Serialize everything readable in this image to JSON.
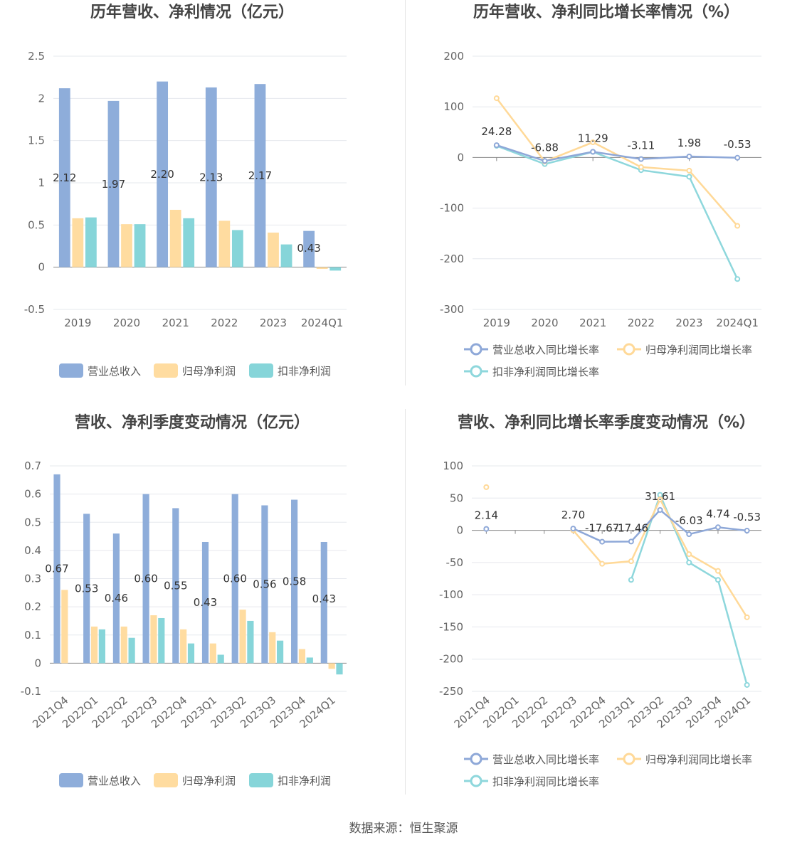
{
  "source": "数据来源：恒生聚源",
  "colors": {
    "rev": "#8EADDA",
    "net": "#FFDCA0",
    "deduct": "#86D5D9",
    "grid": "#E6E8EE",
    "axis": "#888888"
  },
  "chart_data": [
    {
      "id": "c1",
      "type": "bar",
      "title": "历年营收、净利情况（亿元）",
      "categories": [
        "2019",
        "2020",
        "2021",
        "2022",
        "2023",
        "2024Q1"
      ],
      "ylim": [
        -0.5,
        2.5
      ],
      "yticks": [
        "-0.5",
        "0",
        "0.5",
        "1",
        "1.5",
        "2",
        "2.5"
      ],
      "grid": true,
      "legend_position": "bottom",
      "series": [
        {
          "name": "营业总收入",
          "values": [
            2.12,
            1.97,
            2.2,
            2.13,
            2.17,
            0.43
          ],
          "labels": [
            "2.12",
            "1.97",
            "2.20",
            "2.13",
            "2.17",
            "0.43"
          ]
        },
        {
          "name": "归母净利润",
          "values": [
            0.58,
            0.51,
            0.68,
            0.55,
            0.41,
            -0.02
          ]
        },
        {
          "name": "扣非净利润",
          "values": [
            0.59,
            0.51,
            0.58,
            0.44,
            0.27,
            -0.04
          ]
        }
      ]
    },
    {
      "id": "c2",
      "type": "line",
      "title": "历年营收、净利同比增长率情况（%）",
      "categories": [
        "2019",
        "2020",
        "2021",
        "2022",
        "2023",
        "2024Q1"
      ],
      "ylim": [
        -300,
        200
      ],
      "yticks": [
        "-300",
        "-200",
        "-100",
        "0",
        "100",
        "200"
      ],
      "grid": true,
      "legend_position": "bottom",
      "series": [
        {
          "name": "营业总收入同比增长率",
          "values": [
            24.28,
            -6.88,
            11.29,
            -3.11,
            1.98,
            -0.53
          ],
          "labels": [
            "24.28",
            "-6.88",
            "11.29",
            "-3.11",
            "1.98",
            "-0.53"
          ]
        },
        {
          "name": "归母净利润同比增长率",
          "values": [
            117,
            -8,
            30,
            -19,
            -26,
            -135
          ]
        },
        {
          "name": "扣非净利润同比增长率",
          "values": [
            23,
            -13,
            11,
            -25,
            -38,
            -240
          ]
        }
      ]
    },
    {
      "id": "c3",
      "type": "bar",
      "title": "营收、净利季度变动情况（亿元）",
      "categories": [
        "2021Q4",
        "2022Q1",
        "2022Q2",
        "2022Q3",
        "2022Q4",
        "2023Q1",
        "2023Q2",
        "2023Q3",
        "2023Q4",
        "2024Q1"
      ],
      "ylim": [
        -0.1,
        0.7
      ],
      "yticks": [
        "-0.1",
        "0",
        "0.1",
        "0.2",
        "0.3",
        "0.4",
        "0.5",
        "0.6",
        "0.7"
      ],
      "grid": true,
      "legend_position": "bottom",
      "series": [
        {
          "name": "营业总收入",
          "values": [
            0.67,
            0.53,
            0.46,
            0.6,
            0.55,
            0.43,
            0.6,
            0.56,
            0.58,
            0.43
          ],
          "labels": [
            "0.67",
            "0.53",
            "0.46",
            "0.60",
            "0.55",
            "0.43",
            "0.60",
            "0.56",
            "0.58",
            "0.43"
          ]
        },
        {
          "name": "归母净利润",
          "values": [
            0.26,
            0.13,
            0.13,
            0.17,
            0.12,
            0.07,
            0.19,
            0.11,
            0.05,
            -0.02
          ]
        },
        {
          "name": "扣非净利润",
          "values": [
            null,
            0.12,
            0.09,
            0.16,
            0.07,
            0.03,
            0.15,
            0.08,
            0.02,
            -0.04
          ]
        }
      ]
    },
    {
      "id": "c4",
      "type": "line",
      "title": "营收、净利同比增长率季度变动情况（%）",
      "categories": [
        "2021Q4",
        "2022Q1",
        "2022Q2",
        "2022Q3",
        "2022Q4",
        "2023Q1",
        "2023Q2",
        "2023Q3",
        "2023Q4",
        "2024Q1"
      ],
      "ylim": [
        -250,
        100
      ],
      "yticks": [
        "-250",
        "-200",
        "-150",
        "-100",
        "-50",
        "0",
        "50",
        "100"
      ],
      "grid": true,
      "legend_position": "bottom",
      "series": [
        {
          "name": "营业总收入同比增长率",
          "values": [
            2.14,
            null,
            null,
            2.7,
            -17.67,
            -17.46,
            31.61,
            -6.03,
            4.74,
            -0.53
          ],
          "labels": [
            "2.14",
            null,
            null,
            "2.70",
            "-17.67",
            "-17.46",
            "31.61",
            "-6.03",
            "4.74",
            "-0.53"
          ]
        },
        {
          "name": "归母净利润同比增长率",
          "values": [
            67,
            null,
            null,
            0,
            -52,
            -48,
            48,
            -37,
            -63,
            -135
          ]
        },
        {
          "name": "扣非净利润同比增长率",
          "values": [
            null,
            null,
            null,
            null,
            null,
            -77,
            55,
            -50,
            -77,
            -240
          ]
        }
      ]
    }
  ]
}
